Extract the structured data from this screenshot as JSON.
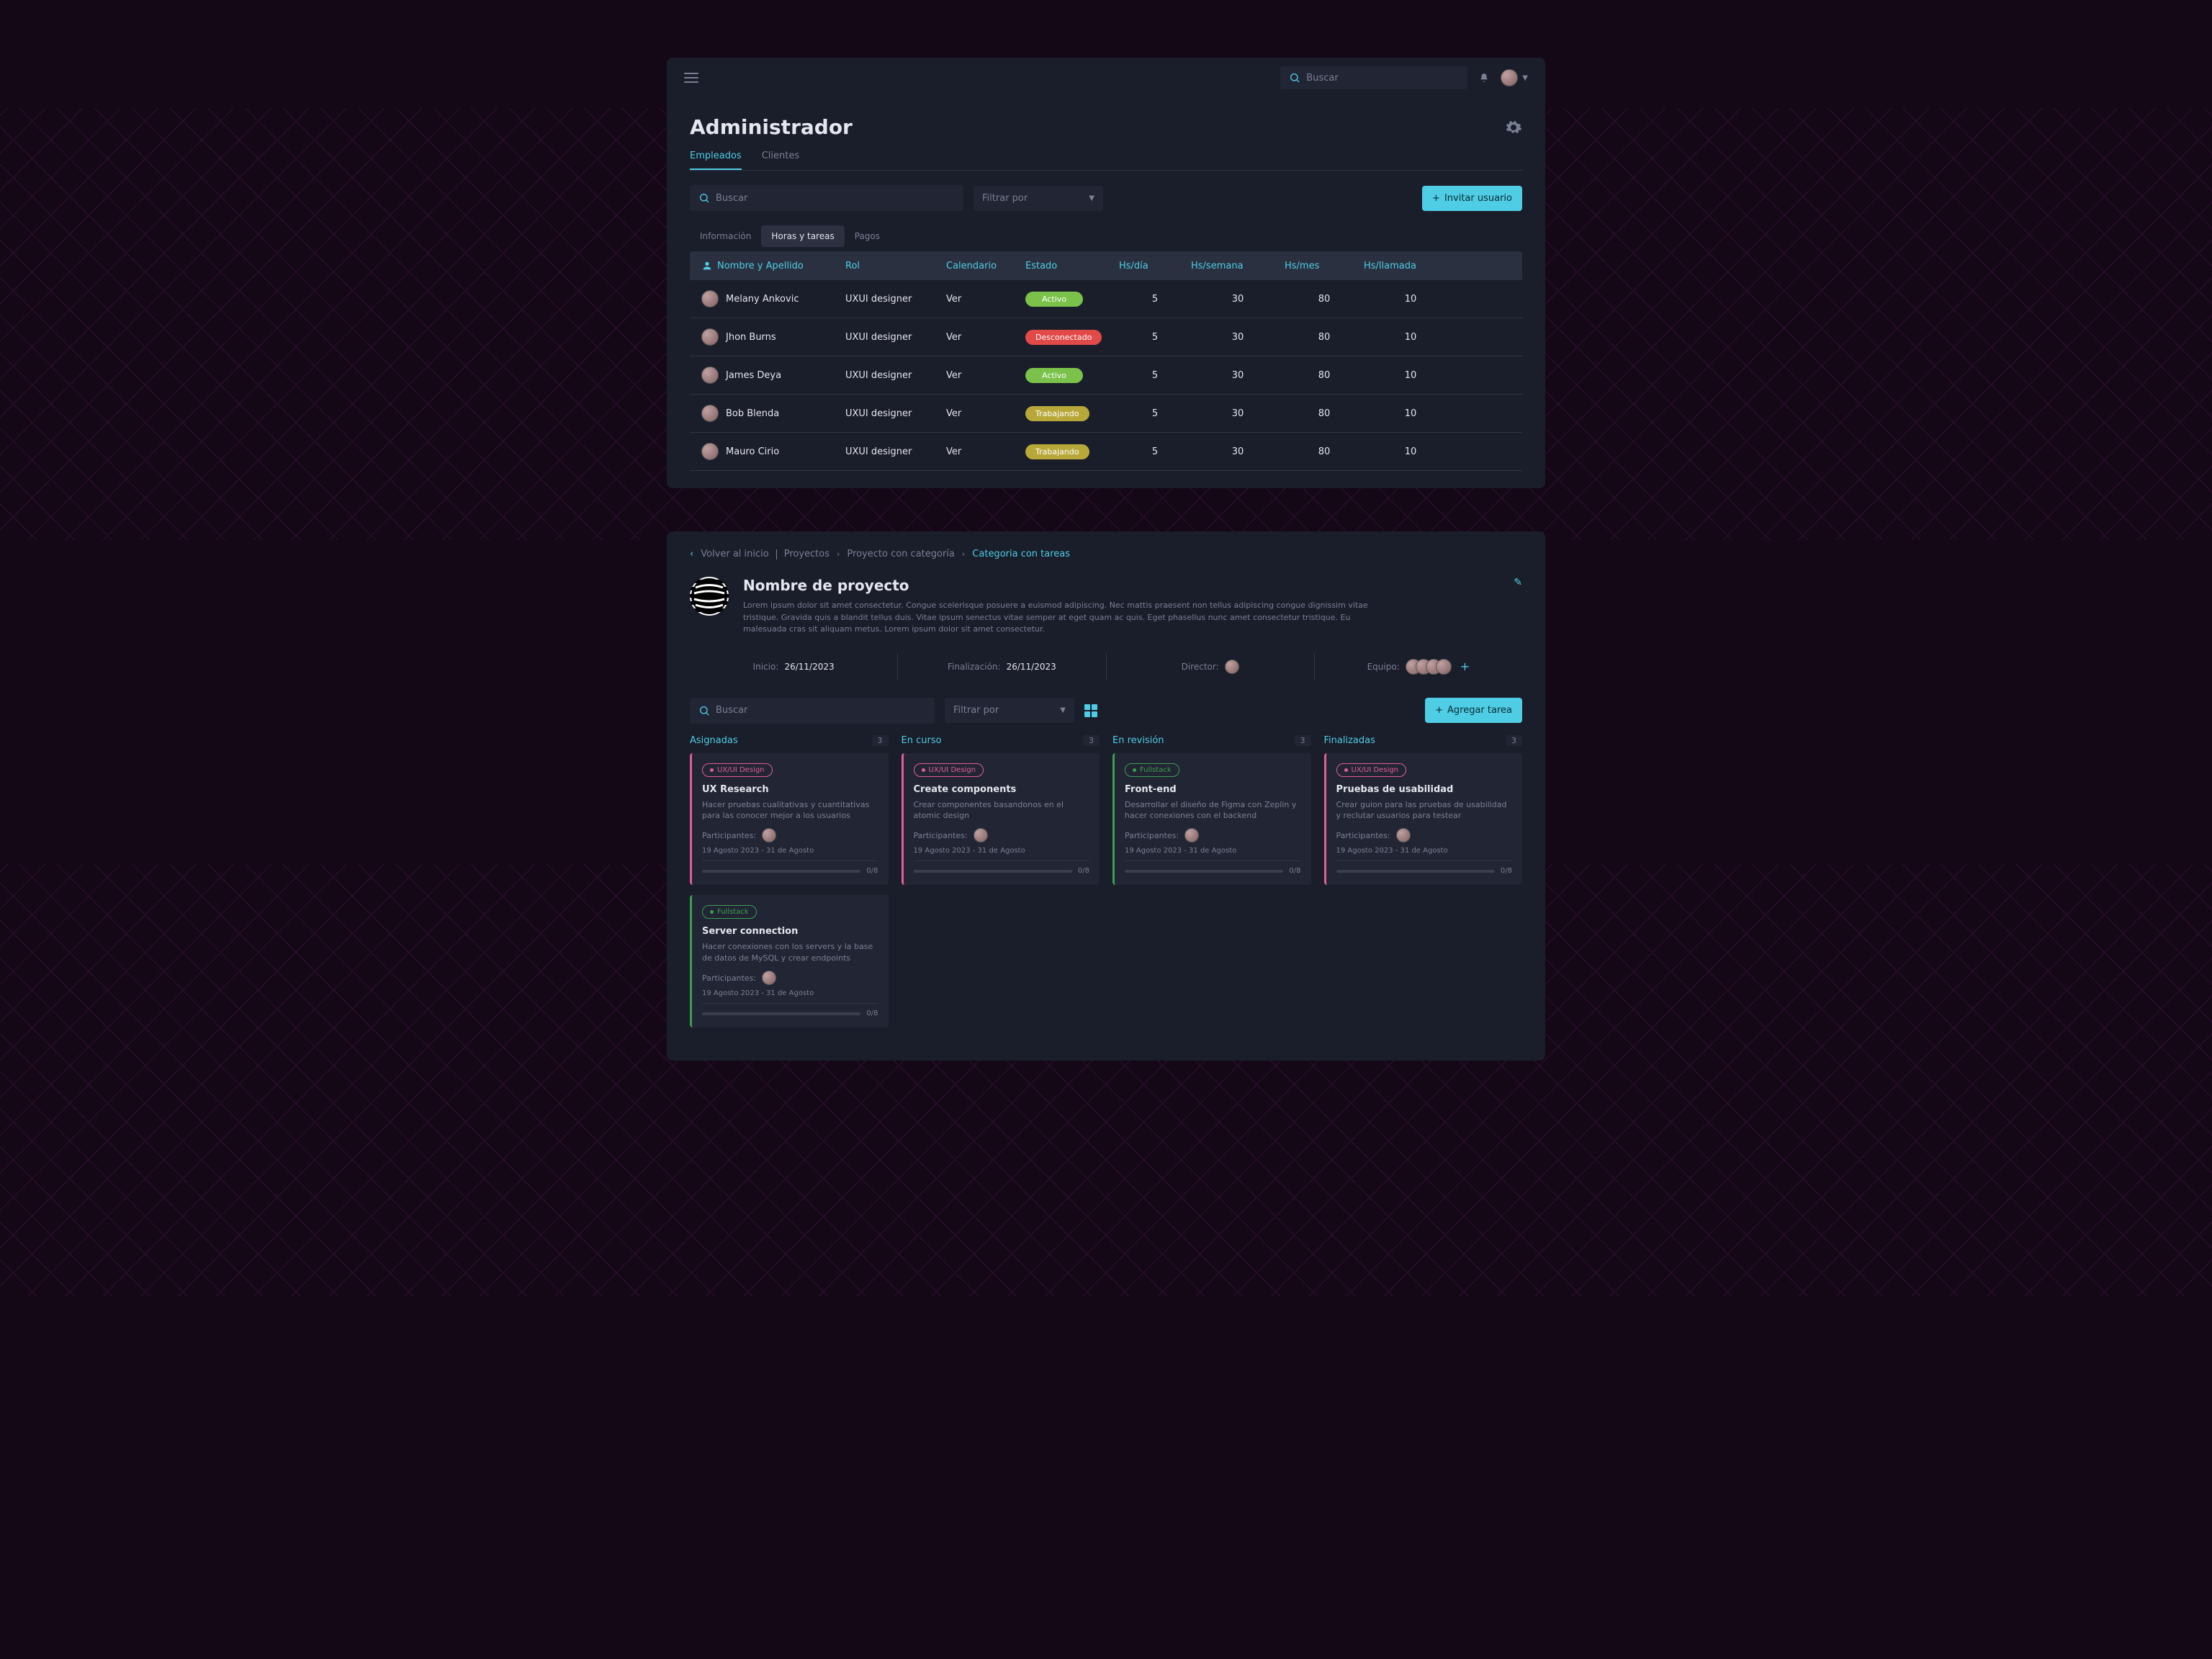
{
  "topbar": {
    "search_placeholder": "Buscar"
  },
  "admin": {
    "title": "Administrador",
    "tabs": [
      "Empleados",
      "Clientes"
    ],
    "search_placeholder": "Buscar",
    "filter_label": "Filtrar por",
    "invite_label": "Invitar usuario",
    "subtabs": [
      "Información",
      "Horas y tareas",
      "Pagos"
    ],
    "columns": [
      "Nombre y Apellido",
      "Rol",
      "Calendario",
      "Estado",
      "Hs/día",
      "Hs/semana",
      "Hs/mes",
      "Hs/llamada"
    ],
    "ver": "Ver",
    "rows": [
      {
        "name": "Melany Ankovic",
        "role": "UXUI designer",
        "status": "Activo",
        "status_color": "green",
        "hd": "5",
        "hw": "30",
        "hm": "80",
        "hc": "10"
      },
      {
        "name": "Jhon Burns",
        "role": "UXUI designer",
        "status": "Desconectado",
        "status_color": "red",
        "hd": "5",
        "hw": "30",
        "hm": "80",
        "hc": "10"
      },
      {
        "name": "James Deya",
        "role": "UXUI designer",
        "status": "Activo",
        "status_color": "green",
        "hd": "5",
        "hw": "30",
        "hm": "80",
        "hc": "10"
      },
      {
        "name": "Bob Blenda",
        "role": "UXUI designer",
        "status": "Trabajando",
        "status_color": "yellow",
        "hd": "5",
        "hw": "30",
        "hm": "80",
        "hc": "10"
      },
      {
        "name": "Mauro Cirio",
        "role": "UXUI designer",
        "status": "Trabajando",
        "status_color": "yellow",
        "hd": "5",
        "hw": "30",
        "hm": "80",
        "hc": "10"
      }
    ]
  },
  "project": {
    "breadcrumb": {
      "back": "Volver al inicio",
      "items": [
        "Proyectos",
        "Proyecto con categoría"
      ],
      "current": "Categoria con tareas"
    },
    "title": "Nombre de proyecto",
    "desc": "Lorem ipsum dolor sit amet consectetur. Congue scelerisque posuere a euismod adipiscing. Nec mattis praesent non tellus adipiscing congue dignissim vitae tristique. Gravida quis a blandit tellus duis. Vitae ipsum senectus vitae semper at eget quam ac quis. Eget phasellus nunc amet consectetur tristique. Eu malesuada cras sit aliquam metus. Lorem ipsum dolor sit amet consectetur.",
    "start_label": "Inicio:",
    "start_val": "26/11/2023",
    "end_label": "Finalización:",
    "end_val": "26/11/2023",
    "director_label": "Director:",
    "team_label": "Equipo:",
    "search_placeholder": "Buscar",
    "filter_label": "Filtrar por",
    "add_task": "Agregar tarea",
    "columns": [
      {
        "name": "Asignadas",
        "count": "3",
        "cards": [
          {
            "tag": "UX/UI Design",
            "tag_color": "pink",
            "title": "UX Research",
            "desc": "Hacer pruebas cualitativas y cuantitativas para las conocer mejor a los usuarios",
            "participants_label": "Participantes:",
            "dates": "19 Agosto 2023 - 31 de Agosto",
            "progress": "0/8"
          },
          {
            "tag": "Fullstack",
            "tag_color": "green",
            "title": "Server connection",
            "desc": "Hacer conexiones con los servers y la base de datos de MySQL y crear endpoints",
            "participants_label": "Participantes:",
            "dates": "19 Agosto 2023 - 31 de Agosto",
            "progress": "0/8"
          }
        ]
      },
      {
        "name": "En curso",
        "count": "3",
        "cards": [
          {
            "tag": "UX/UI Design",
            "tag_color": "pink",
            "title": "Create components",
            "desc": "Crear componentes basandonos en el atomic design",
            "participants_label": "Participantes:",
            "dates": "19 Agosto 2023 - 31 de Agosto",
            "progress": "0/8"
          }
        ]
      },
      {
        "name": "En revisión",
        "count": "3",
        "cards": [
          {
            "tag": "Fullstack",
            "tag_color": "green",
            "title": "Front-end",
            "desc": "Desarrollar el diseño de Figma con Zeplin y hacer conexiones con el backend",
            "participants_label": "Participantes:",
            "dates": "19 Agosto 2023 - 31 de Agosto",
            "progress": "0/8"
          }
        ]
      },
      {
        "name": "Finalizadas",
        "count": "3",
        "cards": [
          {
            "tag": "UX/UI Design",
            "tag_color": "pink",
            "title": "Pruebas de usabilidad",
            "desc": "Crear guion para las pruebas de usabilidad y reclutar usuarios para testear",
            "participants_label": "Participantes:",
            "dates": "19 Agosto 2023 - 31 de Agosto",
            "progress": "0/8"
          }
        ]
      }
    ]
  }
}
